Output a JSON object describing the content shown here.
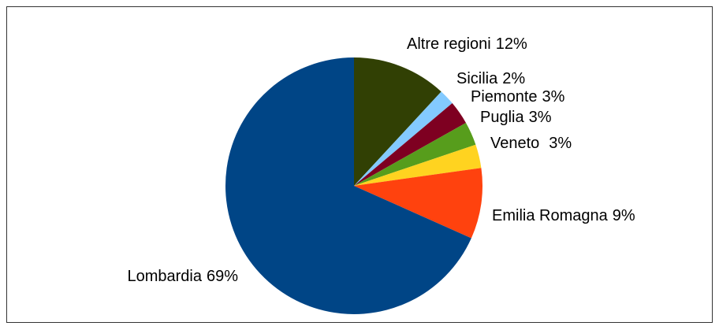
{
  "chart_data": {
    "type": "pie",
    "categories": [
      "Altre regioni",
      "Sicilia",
      "Piemonte",
      "Puglia",
      "Veneto",
      "Emilia Romagna",
      "Lombardia"
    ],
    "values": [
      12,
      2,
      3,
      3,
      3,
      9,
      69
    ],
    "value_labels": [
      "12%",
      "2%",
      "3%",
      "3%",
      "3%",
      "9%",
      "69%"
    ],
    "colors": [
      "#314004",
      "#83caff",
      "#7e0021",
      "#579d1c",
      "#ffd320",
      "#ff420e",
      "#004586"
    ]
  }
}
